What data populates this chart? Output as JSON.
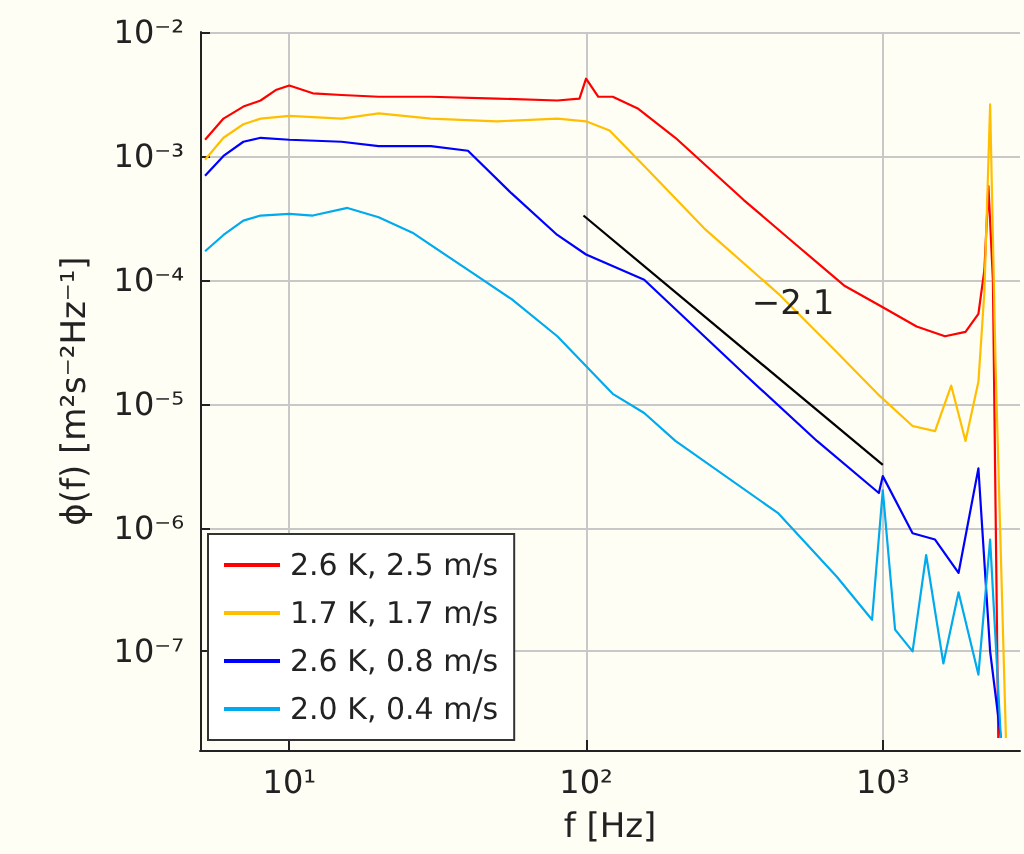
{
  "chart_data": {
    "type": "line",
    "xlabel": "f [Hz]",
    "ylabel": "ϕ(f) [m²s⁻²Hz⁻¹]",
    "log": "xy",
    "grid": true,
    "legend": "bottom left",
    "marker": "none",
    "line_style": "solid",
    "xlim": [
      5,
      2900
    ],
    "ylim": [
      1.6e-08,
      0.01
    ],
    "xticks": [
      {
        "value": 10,
        "label": "10¹"
      },
      {
        "value": 100,
        "label": "10²"
      },
      {
        "value": 1000,
        "label": "10³"
      }
    ],
    "yticks": [
      {
        "value": 1e-07,
        "label": "10⁻⁷"
      },
      {
        "value": 1e-06,
        "label": "10⁻⁶"
      },
      {
        "value": 1e-05,
        "label": "10⁻⁵"
      },
      {
        "value": 0.0001,
        "label": "10⁻⁴"
      },
      {
        "value": 0.001,
        "label": "10⁻³"
      },
      {
        "value": 0.01,
        "label": "10⁻²"
      }
    ],
    "annotations": [
      "−2.1"
    ],
    "series": [
      {
        "name": "2.6 K, 2.5 m/s",
        "color": "#ff0000",
        "x": [
          5.2,
          6,
          7,
          8,
          9,
          10,
          12,
          15,
          20,
          30,
          50,
          80,
          95,
          100,
          110,
          123,
          150,
          200,
          340,
          500,
          740,
          1000,
          1300,
          1620,
          1900,
          2100,
          2200,
          2270,
          2350,
          2450
        ],
        "values": [
          0.00135,
          0.002,
          0.0025,
          0.0028,
          0.0034,
          0.0037,
          0.0032,
          0.0031,
          0.003,
          0.003,
          0.0029,
          0.0028,
          0.0029,
          0.0042,
          0.003,
          0.003,
          0.0024,
          0.0014,
          0.00044,
          0.0002,
          9e-05,
          6e-05,
          4.2e-05,
          3.5e-05,
          3.8e-05,
          5.3e-05,
          0.00012,
          0.00057,
          0.0001,
          2e-08
        ]
      },
      {
        "name": "1.7 K, 1.7 m/s",
        "color": "#ffbf00",
        "x": [
          5.2,
          6,
          7,
          8,
          10,
          15,
          20,
          30,
          50,
          80,
          100,
          120,
          157,
          250,
          445,
          700,
          960,
          1260,
          1500,
          1700,
          1900,
          2100,
          2200,
          2300,
          2400,
          2600
        ],
        "values": [
          0.00093,
          0.0014,
          0.0018,
          0.002,
          0.0021,
          0.002,
          0.0022,
          0.002,
          0.0019,
          0.002,
          0.0019,
          0.0016,
          0.00083,
          0.00026,
          7.7e-05,
          2.6e-05,
          1.2e-05,
          6.6e-06,
          6e-06,
          1.4e-05,
          5e-06,
          1.5e-05,
          8e-05,
          0.0026,
          2e-05,
          2e-08
        ]
      },
      {
        "name": "2.6 K, 0.8 m/s",
        "color": "#0000ff",
        "x": [
          5.2,
          6,
          7,
          8,
          10,
          15,
          20,
          30,
          40,
          56,
          80,
          100,
          157,
          340,
          600,
          970,
          1000,
          1260,
          1500,
          1800,
          2100,
          2300,
          2500
        ],
        "values": [
          0.00069,
          0.001,
          0.0013,
          0.0014,
          0.00135,
          0.0013,
          0.0012,
          0.0012,
          0.0011,
          0.0005,
          0.00023,
          0.00016,
          0.0001,
          1.75e-05,
          5e-06,
          1.9e-06,
          2.6e-06,
          9e-07,
          8e-07,
          4.3e-07,
          3e-06,
          1e-07,
          2e-08
        ]
      },
      {
        "name": "2.0 K, 0.4 m/s",
        "color": "#00aaee",
        "x": [
          5.2,
          6,
          7,
          8,
          10,
          12,
          15.7,
          20,
          26,
          40,
          56,
          80,
          123,
          157,
          200,
          445,
          700,
          920,
          1000,
          1100,
          1260,
          1400,
          1600,
          1800,
          2100,
          2300,
          2500
        ],
        "values": [
          0.00017,
          0.00023,
          0.0003,
          0.00033,
          0.00034,
          0.00033,
          0.00038,
          0.00032,
          0.00024,
          0.00012,
          7e-05,
          3.5e-05,
          1.2e-05,
          8.4e-06,
          5e-06,
          1.3e-06,
          4e-07,
          1.8e-07,
          2e-06,
          1.5e-07,
          1e-07,
          6e-07,
          8e-08,
          3e-07,
          6.5e-08,
          8e-07,
          2e-08
        ]
      },
      {
        "type": "line",
        "color": "#000000",
        "x": [
          98,
          1000
        ],
        "values": [
          0.00033,
          3.2e-06
        ]
      }
    ]
  }
}
